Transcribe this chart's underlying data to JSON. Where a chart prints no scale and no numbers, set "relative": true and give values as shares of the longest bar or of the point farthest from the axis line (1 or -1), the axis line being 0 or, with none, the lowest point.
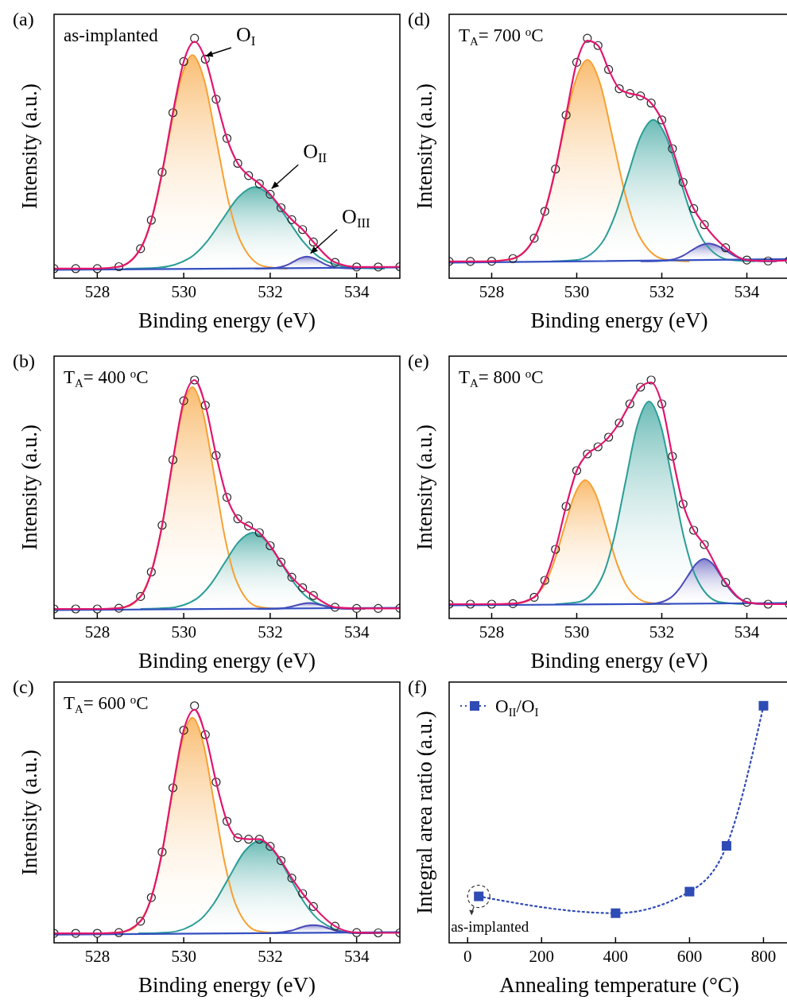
{
  "chart_data": [
    {
      "type": "line",
      "title": "(a)",
      "xlabel": "Binding energy (eV)",
      "ylabel": "Intensity (a.u.)",
      "xlim": [
        527,
        535
      ],
      "xticks": [
        528,
        530,
        532,
        534
      ],
      "relative": true,
      "annotations": [
        "as-implanted",
        {
          "text": "O$_{I}$",
          "x": 530.4,
          "y": 0.92
        },
        {
          "text": "O$_{II}$",
          "x": 531.95,
          "y": 0.36
        },
        {
          "text": "O$_{III}$",
          "x": 532.85,
          "y": 0.09
        }
      ],
      "series": [
        {
          "type": "area",
          "color": "#f7a033",
          "x": [
            528.0,
            528.55,
            529.1,
            529.375,
            529.65,
            529.925,
            530.2,
            530.475,
            530.75,
            531.025,
            531.3,
            531.85,
            532.4
          ],
          "values": [
            0.04,
            0.05,
            0.16,
            0.329,
            0.58,
            0.825,
            0.93,
            0.825,
            0.58,
            0.329,
            0.16,
            0.05,
            0.04
          ]
        },
        {
          "type": "area",
          "color": "#2a9d96",
          "x": [
            528.65,
            529.4,
            530.15,
            530.525,
            530.9,
            531.275,
            531.65,
            532.025,
            532.4,
            532.775,
            533.15,
            533.9,
            534.65
          ],
          "values": [
            0.04,
            0.044,
            0.086,
            0.15,
            0.246,
            0.34,
            0.38,
            0.34,
            0.246,
            0.15,
            0.086,
            0.044,
            0.04
          ]
        },
        {
          "type": "area",
          "color": "#4a4ab8",
          "x": [
            531.65,
            531.95,
            532.25,
            532.4,
            532.55,
            532.7,
            532.85,
            533.0,
            533.15,
            533.3,
            533.45,
            533.75,
            534.05
          ],
          "values": [
            0.04,
            0.041,
            0.047,
            0.056,
            0.07,
            0.084,
            0.09,
            0.084,
            0.07,
            0.056,
            0.047,
            0.041,
            0.04
          ]
        },
        {
          "type": "line",
          "color": "#3450c0",
          "x": [
            527,
            535
          ],
          "values": [
            0.035,
            0.045
          ]
        },
        {
          "type": "scatter",
          "color": "#222222",
          "marker": "circle",
          "x": [
            527,
            527.5,
            528,
            528.5,
            529,
            529.25,
            529.5,
            529.75,
            530,
            530.25,
            530.5,
            530.75,
            531,
            531.25,
            531.5,
            531.75,
            532,
            532.25,
            532.5,
            532.75,
            533,
            533.5,
            534,
            534.5,
            535
          ],
          "values": [
            0.04,
            0.04,
            0.04,
            0.048,
            0.123,
            0.242,
            0.442,
            0.69,
            0.903,
            1.0,
            0.913,
            0.746,
            0.583,
            0.479,
            0.428,
            0.394,
            0.35,
            0.294,
            0.244,
            0.203,
            0.151,
            0.066,
            0.047,
            0.047,
            0.048
          ]
        },
        {
          "type": "line",
          "color": "#e0166f",
          "x": [
            527,
            527.5,
            528,
            528.5,
            529,
            529.25,
            529.5,
            529.75,
            530,
            530.25,
            530.5,
            530.75,
            531,
            531.25,
            531.5,
            531.75,
            532,
            532.25,
            532.5,
            532.75,
            533,
            533.5,
            534,
            534.5,
            535
          ],
          "values": [
            0.04,
            0.04,
            0.04,
            0.048,
            0.123,
            0.242,
            0.442,
            0.69,
            0.903,
            0.986,
            0.913,
            0.746,
            0.583,
            0.479,
            0.428,
            0.394,
            0.35,
            0.294,
            0.244,
            0.203,
            0.151,
            0.066,
            0.047,
            0.047,
            0.048
          ]
        }
      ]
    },
    {
      "type": "line",
      "title": "(b)",
      "xlabel": "Binding energy (eV)",
      "ylabel": "Intensity (a.u.)",
      "xlim": [
        527,
        535
      ],
      "xticks": [
        528,
        530,
        532,
        534
      ],
      "relative": true,
      "annotations": [
        "T$_{A}$= 400 $^{o}$C"
      ],
      "series": [
        {
          "type": "area",
          "color": "#f7a033",
          "x": [
            528.2,
            528.7,
            529.2,
            529.45,
            529.7,
            529.95,
            530.2,
            530.45,
            530.7,
            530.95,
            531.2,
            531.7,
            532.2
          ],
          "values": [
            0.04,
            0.05,
            0.166,
            0.342,
            0.605,
            0.86,
            0.97,
            0.86,
            0.605,
            0.342,
            0.166,
            0.05,
            0.04
          ]
        },
        {
          "type": "area",
          "color": "#2a9d96",
          "x": [
            529.0,
            529.65,
            530.3,
            530.625,
            530.95,
            531.275,
            531.6,
            531.925,
            532.25,
            532.575,
            532.9,
            533.55,
            534.2
          ],
          "values": [
            0.04,
            0.044,
            0.083,
            0.144,
            0.234,
            0.322,
            0.36,
            0.322,
            0.234,
            0.144,
            0.083,
            0.044,
            0.04
          ]
        },
        {
          "type": "area",
          "color": "#4a4ab8",
          "x": [
            531.7,
            532.0,
            532.3,
            532.45,
            532.6,
            532.75,
            532.9,
            533.05,
            533.2,
            533.35,
            533.5,
            533.8,
            534.1
          ],
          "values": [
            0.04,
            0.04,
            0.043,
            0.048,
            0.055,
            0.062,
            0.065,
            0.062,
            0.055,
            0.048,
            0.043,
            0.04,
            0.04
          ]
        },
        {
          "type": "line",
          "color": "#3450c0",
          "x": [
            527,
            535
          ],
          "values": [
            0.035,
            0.045
          ]
        },
        {
          "type": "scatter",
          "color": "#222222",
          "marker": "circle",
          "x": [
            527,
            527.5,
            528,
            528.5,
            529,
            529.25,
            529.5,
            529.75,
            530,
            530.25,
            530.5,
            530.75,
            531,
            531.25,
            531.5,
            531.75,
            532,
            532.25,
            532.5,
            532.75,
            533,
            533.5,
            534,
            534.5,
            535
          ],
          "values": [
            0.04,
            0.04,
            0.04,
            0.043,
            0.092,
            0.195,
            0.391,
            0.665,
            0.913,
            1.0,
            0.894,
            0.684,
            0.508,
            0.418,
            0.388,
            0.36,
            0.305,
            0.236,
            0.173,
            0.129,
            0.096,
            0.047,
            0.042,
            0.042,
            0.043
          ]
        },
        {
          "type": "line",
          "color": "#e0166f",
          "x": [
            527,
            527.5,
            528,
            528.5,
            529,
            529.25,
            529.5,
            529.75,
            530,
            530.25,
            530.5,
            530.75,
            531,
            531.25,
            531.5,
            531.75,
            532,
            532.25,
            532.5,
            532.75,
            533,
            533.5,
            534,
            534.5,
            535
          ],
          "values": [
            0.04,
            0.04,
            0.04,
            0.043,
            0.092,
            0.195,
            0.391,
            0.665,
            0.913,
            1.0,
            0.894,
            0.684,
            0.508,
            0.418,
            0.388,
            0.36,
            0.305,
            0.236,
            0.173,
            0.129,
            0.096,
            0.047,
            0.042,
            0.042,
            0.043
          ]
        }
      ]
    },
    {
      "type": "line",
      "title": "(c)",
      "xlabel": "Binding energy (eV)",
      "ylabel": "Intensity (a.u.)",
      "xlim": [
        527,
        535
      ],
      "xticks": [
        528,
        530,
        532,
        534
      ],
      "relative": true,
      "annotations": [
        "T$_{A}$= 600 $^{o}$C"
      ],
      "series": [
        {
          "type": "area",
          "color": "#f7a033",
          "x": [
            528.2,
            528.7,
            529.2,
            529.45,
            529.7,
            529.95,
            530.2,
            530.45,
            530.7,
            530.95,
            531.2,
            531.7,
            532.2
          ],
          "values": [
            0.04,
            0.05,
            0.163,
            0.336,
            0.592,
            0.843,
            0.95,
            0.843,
            0.592,
            0.336,
            0.163,
            0.05,
            0.04
          ]
        },
        {
          "type": "area",
          "color": "#2a9d96",
          "x": [
            528.95,
            529.65,
            530.35,
            530.7,
            531.05,
            531.4,
            531.75,
            532.1,
            532.45,
            532.8,
            533.15,
            533.85,
            534.55
          ],
          "values": [
            0.04,
            0.044,
            0.093,
            0.167,
            0.277,
            0.384,
            0.43,
            0.384,
            0.277,
            0.167,
            0.093,
            0.044,
            0.04
          ]
        },
        {
          "type": "area",
          "color": "#4a4ab8",
          "x": [
            531.6,
            531.95,
            532.3,
            532.475,
            532.65,
            532.825,
            533.0,
            533.175,
            533.35,
            533.525,
            533.7,
            534.05,
            534.4
          ],
          "values": [
            0.04,
            0.04,
            0.045,
            0.051,
            0.061,
            0.071,
            0.075,
            0.071,
            0.061,
            0.051,
            0.045,
            0.04,
            0.04
          ]
        },
        {
          "type": "line",
          "color": "#3450c0",
          "x": [
            527,
            535
          ],
          "values": [
            0.035,
            0.045
          ]
        },
        {
          "type": "scatter",
          "color": "#222222",
          "marker": "circle",
          "x": [
            527,
            527.5,
            528,
            528.5,
            529,
            529.25,
            529.5,
            529.75,
            530,
            530.25,
            530.5,
            530.75,
            531,
            531.25,
            531.5,
            531.75,
            532,
            532.25,
            532.5,
            532.75,
            533,
            533.5,
            534,
            534.5,
            535
          ],
          "values": [
            0.04,
            0.04,
            0.04,
            0.043,
            0.091,
            0.191,
            0.383,
            0.654,
            0.897,
            1.0,
            0.878,
            0.678,
            0.513,
            0.443,
            0.437,
            0.437,
            0.407,
            0.347,
            0.273,
            0.208,
            0.153,
            0.07,
            0.043,
            0.042,
            0.042
          ]
        },
        {
          "type": "line",
          "color": "#e0166f",
          "x": [
            527,
            527.5,
            528,
            528.5,
            529,
            529.25,
            529.5,
            529.75,
            530,
            530.25,
            530.5,
            530.75,
            531,
            531.25,
            531.5,
            531.75,
            532,
            532.25,
            532.5,
            532.75,
            533,
            533.5,
            534,
            534.5,
            535
          ],
          "values": [
            0.04,
            0.04,
            0.04,
            0.043,
            0.091,
            0.191,
            0.383,
            0.654,
            0.897,
            0.984,
            0.878,
            0.678,
            0.513,
            0.443,
            0.437,
            0.437,
            0.407,
            0.347,
            0.273,
            0.208,
            0.153,
            0.07,
            0.043,
            0.042,
            0.042
          ]
        }
      ]
    },
    {
      "type": "line",
      "title": "(d)",
      "xlabel": "Binding energy (eV)",
      "ylabel": "Intensity (a.u.)",
      "xlim": [
        527,
        535
      ],
      "xticks": [
        528,
        530,
        532,
        534
      ],
      "relative": true,
      "annotations": [
        "T$_{A}$= 700 $^{o}$C"
      ],
      "series": [
        {
          "type": "area",
          "color": "#f7a033",
          "x": [
            527.85,
            528.45,
            529.05,
            529.35,
            529.65,
            529.95,
            530.25,
            530.55,
            530.85,
            531.15,
            531.45,
            532.05,
            532.65
          ],
          "values": [
            0.07,
            0.079,
            0.183,
            0.343,
            0.58,
            0.811,
            0.91,
            0.811,
            0.58,
            0.343,
            0.183,
            0.079,
            0.07
          ]
        },
        {
          "type": "area",
          "color": "#2a9d96",
          "x": [
            529.4,
            530.0,
            530.6,
            530.9,
            531.2,
            531.5,
            531.8,
            532.1,
            532.4,
            532.7,
            533.0,
            533.6,
            534.2
          ],
          "values": [
            0.07,
            0.076,
            0.15,
            0.262,
            0.428,
            0.59,
            0.66,
            0.59,
            0.428,
            0.262,
            0.15,
            0.076,
            0.07
          ]
        },
        {
          "type": "area",
          "color": "#4a4ab8",
          "x": [
            531.5,
            531.9,
            532.3,
            532.5,
            532.7,
            532.9,
            533.1,
            533.3,
            533.5,
            533.7,
            533.9,
            534.3,
            534.7
          ],
          "values": [
            0.07,
            0.071,
            0.08,
            0.094,
            0.116,
            0.136,
            0.145,
            0.136,
            0.116,
            0.094,
            0.08,
            0.071,
            0.07
          ]
        },
        {
          "type": "line",
          "color": "#3450c0",
          "x": [
            527,
            535
          ],
          "values": [
            0.065,
            0.08
          ]
        },
        {
          "type": "scatter",
          "color": "#222222",
          "marker": "circle",
          "x": [
            527,
            527.5,
            528,
            528.5,
            529,
            529.25,
            529.5,
            529.75,
            530,
            530.25,
            530.5,
            530.75,
            531,
            531.25,
            531.5,
            531.75,
            532,
            532.25,
            532.5,
            532.75,
            533,
            533.5,
            534,
            534.5,
            535
          ],
          "values": [
            0.07,
            0.07,
            0.071,
            0.082,
            0.167,
            0.279,
            0.455,
            0.68,
            0.9,
            1.0,
            0.97,
            0.87,
            0.79,
            0.77,
            0.76,
            0.73,
            0.66,
            0.54,
            0.4,
            0.29,
            0.223,
            0.127,
            0.076,
            0.072,
            0.075
          ]
        },
        {
          "type": "line",
          "color": "#e0166f",
          "x": [
            527,
            527.5,
            528,
            528.5,
            529,
            529.25,
            529.5,
            529.75,
            530,
            530.25,
            530.5,
            530.75,
            531,
            531.25,
            531.5,
            531.75,
            532,
            532.25,
            532.5,
            532.75,
            533,
            533.5,
            534,
            534.5,
            535
          ],
          "values": [
            0.07,
            0.07,
            0.071,
            0.082,
            0.167,
            0.279,
            0.455,
            0.68,
            0.9,
            0.99,
            0.97,
            0.87,
            0.79,
            0.77,
            0.76,
            0.73,
            0.66,
            0.54,
            0.4,
            0.29,
            0.223,
            0.127,
            0.076,
            0.072,
            0.075
          ]
        }
      ]
    },
    {
      "type": "line",
      "title": "(e)",
      "xlabel": "Binding energy (eV)",
      "ylabel": "Intensity (a.u.)",
      "xlim": [
        527,
        535
      ],
      "xticks": [
        528,
        530,
        532,
        534
      ],
      "relative": true,
      "annotations": [
        "T$_{A}$= 800 $^{o}$C"
      ],
      "series": [
        {
          "type": "area",
          "color": "#f7a033",
          "x": [
            528.2,
            528.7,
            529.2,
            529.45,
            529.7,
            529.95,
            530.2,
            530.45,
            530.7,
            530.95,
            531.2,
            531.7,
            532.2
          ],
          "values": [
            0.06,
            0.066,
            0.13,
            0.229,
            0.376,
            0.519,
            0.58,
            0.519,
            0.376,
            0.229,
            0.13,
            0.066,
            0.06
          ]
        },
        {
          "type": "area",
          "color": "#2a9d96",
          "x": [
            529.5,
            530.05,
            530.6,
            530.875,
            531.15,
            531.425,
            531.7,
            531.975,
            532.25,
            532.525,
            532.8,
            533.35,
            533.9
          ],
          "values": [
            0.06,
            0.069,
            0.175,
            0.336,
            0.576,
            0.81,
            0.91,
            0.81,
            0.576,
            0.336,
            0.175,
            0.069,
            0.06
          ]
        },
        {
          "type": "area",
          "color": "#4a4ab8",
          "x": [
            531.4,
            531.8,
            532.2,
            532.4,
            532.6,
            532.8,
            533.0,
            533.2,
            533.4,
            533.6,
            533.8,
            534.2,
            534.6
          ],
          "values": [
            0.06,
            0.062,
            0.086,
            0.122,
            0.175,
            0.228,
            0.25,
            0.228,
            0.175,
            0.122,
            0.086,
            0.062,
            0.06
          ]
        },
        {
          "type": "line",
          "color": "#3450c0",
          "x": [
            527,
            535
          ],
          "values": [
            0.055,
            0.065
          ]
        },
        {
          "type": "scatter",
          "color": "#222222",
          "marker": "circle",
          "x": [
            527,
            527.5,
            528,
            528.5,
            529,
            529.25,
            529.5,
            529.75,
            530,
            530.25,
            530.5,
            530.75,
            531,
            531.25,
            531.5,
            531.75,
            532,
            532.25,
            532.5,
            532.75,
            533,
            533.5,
            534,
            534.5,
            535
          ],
          "values": [
            0.06,
            0.06,
            0.06,
            0.062,
            0.089,
            0.16,
            0.29,
            0.47,
            0.62,
            0.69,
            0.72,
            0.76,
            0.82,
            0.9,
            0.97,
            1.0,
            0.9,
            0.68,
            0.48,
            0.37,
            0.31,
            0.151,
            0.068,
            0.06,
            0.06
          ]
        },
        {
          "type": "line",
          "color": "#e0166f",
          "x": [
            527,
            527.5,
            528,
            528.5,
            529,
            529.25,
            529.5,
            529.75,
            530,
            530.25,
            530.5,
            530.75,
            531,
            531.25,
            531.5,
            531.75,
            532,
            532.25,
            532.5,
            532.75,
            533,
            533.5,
            534,
            534.5,
            535
          ],
          "values": [
            0.06,
            0.06,
            0.06,
            0.062,
            0.089,
            0.16,
            0.29,
            0.47,
            0.62,
            0.69,
            0.72,
            0.76,
            0.82,
            0.9,
            0.97,
            0.99,
            0.9,
            0.68,
            0.48,
            0.37,
            0.31,
            0.151,
            0.068,
            0.06,
            0.06
          ]
        }
      ]
    },
    {
      "type": "line",
      "title": "(f)",
      "xlabel": "Annealing temperature (°C)",
      "ylabel": "Integral area ratio (a.u.)",
      "xlim": [
        -50,
        870
      ],
      "xticks": [
        0,
        200,
        400,
        600,
        800
      ],
      "relative": true,
      "legend": "top left",
      "marker": "square",
      "line_style": "dotted",
      "annotations": [
        {
          "text": "as-implanted",
          "x": 30,
          "y": 0.196
        }
      ],
      "series": [
        {
          "name": "O$_{II}$/O$_{I}$",
          "color": "#2f4bb5",
          "x": [
            30,
            400,
            600,
            700,
            800
          ],
          "values": [
            0.196,
            0.125,
            0.216,
            0.409,
            1
          ]
        }
      ]
    }
  ]
}
